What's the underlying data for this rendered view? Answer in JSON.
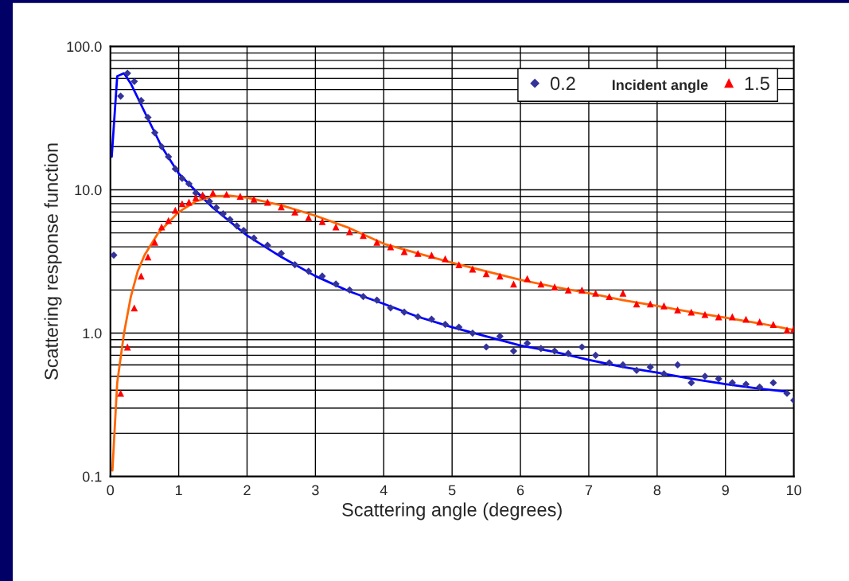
{
  "chart_data": {
    "type": "scatter",
    "xlabel": "Scattering angle (degrees)",
    "ylabel": "Scattering response function",
    "legend_title": "Incident angle",
    "legend": "top right",
    "grid": true,
    "log": "y",
    "xlim": [
      0,
      10
    ],
    "xticks": [
      0,
      1,
      2,
      3,
      4,
      5,
      6,
      7,
      8,
      9,
      10
    ],
    "ylim": [
      0.1,
      100
    ],
    "yticks": [
      {
        "value": 0.1,
        "label": "0.1"
      },
      {
        "value": 1,
        "label": "1.0"
      },
      {
        "value": 10,
        "label": "10.0"
      },
      {
        "value": 100,
        "label": "100.0"
      }
    ],
    "series": [
      {
        "name": "0.2",
        "marker": "diamond",
        "color": "#333399",
        "x": [
          0.05,
          0.15,
          0.25,
          0.35,
          0.45,
          0.55,
          0.65,
          0.75,
          0.85,
          0.95,
          1.05,
          1.15,
          1.25,
          1.35,
          1.45,
          1.55,
          1.65,
          1.75,
          1.85,
          1.95,
          2.1,
          2.3,
          2.5,
          2.7,
          2.9,
          3.1,
          3.3,
          3.5,
          3.7,
          3.9,
          4.1,
          4.3,
          4.5,
          4.7,
          4.9,
          5.1,
          5.3,
          5.5,
          5.7,
          5.9,
          6.1,
          6.3,
          6.5,
          6.7,
          6.9,
          7.1,
          7.3,
          7.5,
          7.7,
          7.9,
          8.1,
          8.3,
          8.5,
          8.7,
          8.9,
          9.1,
          9.3,
          9.5,
          9.7,
          9.9,
          10.0
        ],
        "values": [
          3.5,
          45,
          65,
          57,
          42,
          32,
          25,
          20,
          17,
          14,
          12,
          11,
          9.5,
          9,
          8.3,
          7.5,
          6.8,
          6.2,
          5.6,
          5.2,
          4.6,
          4.1,
          3.6,
          3.0,
          2.7,
          2.5,
          2.2,
          2.0,
          1.8,
          1.7,
          1.5,
          1.4,
          1.3,
          1.25,
          1.15,
          1.1,
          1.0,
          0.8,
          0.95,
          0.75,
          0.85,
          0.78,
          0.75,
          0.72,
          0.8,
          0.7,
          0.62,
          0.6,
          0.55,
          0.58,
          0.52,
          0.6,
          0.45,
          0.5,
          0.48,
          0.45,
          0.44,
          0.42,
          0.45,
          0.38,
          0.34
        ]
      },
      {
        "name": "1.5",
        "marker": "triangle",
        "color": "#ff0000",
        "x": [
          0.15,
          0.25,
          0.35,
          0.45,
          0.55,
          0.65,
          0.75,
          0.85,
          0.95,
          1.05,
          1.15,
          1.25,
          1.35,
          1.5,
          1.7,
          1.9,
          2.1,
          2.3,
          2.5,
          2.7,
          2.9,
          3.1,
          3.3,
          3.5,
          3.7,
          3.9,
          4.1,
          4.3,
          4.5,
          4.7,
          4.9,
          5.1,
          5.3,
          5.5,
          5.7,
          5.9,
          6.1,
          6.3,
          6.5,
          6.7,
          6.9,
          7.1,
          7.3,
          7.5,
          7.7,
          7.9,
          8.1,
          8.3,
          8.5,
          8.7,
          8.9,
          9.1,
          9.3,
          9.5,
          9.7,
          9.9,
          10.0
        ],
        "values": [
          0.38,
          0.8,
          1.5,
          2.5,
          3.4,
          4.3,
          5.5,
          6.1,
          7.2,
          8.0,
          8.2,
          8.8,
          9.2,
          9.5,
          9.3,
          9.0,
          8.6,
          8.2,
          7.6,
          7.0,
          6.4,
          6.0,
          5.5,
          5.1,
          4.8,
          4.3,
          4.0,
          3.7,
          3.6,
          3.5,
          3.3,
          3.0,
          2.8,
          2.6,
          2.5,
          2.2,
          2.4,
          2.2,
          2.1,
          2.0,
          2.0,
          1.9,
          1.8,
          1.9,
          1.6,
          1.6,
          1.55,
          1.45,
          1.4,
          1.35,
          1.3,
          1.3,
          1.25,
          1.2,
          1.15,
          1.05,
          1.07
        ]
      },
      {
        "type": "line",
        "color": "#0000ff",
        "x": [
          0.02,
          0.1,
          0.2,
          0.3,
          0.5,
          0.75,
          1.0,
          1.25,
          1.5,
          2.0,
          2.5,
          3.0,
          3.5,
          4.0,
          4.5,
          5.0,
          5.5,
          6.0,
          6.5,
          7.0,
          7.5,
          8.0,
          8.5,
          9.0,
          9.5,
          9.9
        ],
        "values": [
          17,
          62,
          65,
          55,
          35,
          20,
          13,
          9.8,
          7.5,
          4.8,
          3.4,
          2.5,
          1.95,
          1.6,
          1.3,
          1.1,
          0.95,
          0.82,
          0.74,
          0.65,
          0.58,
          0.53,
          0.48,
          0.44,
          0.41,
          0.39
        ]
      },
      {
        "type": "line",
        "color": "#ff6600",
        "x": [
          0.03,
          0.1,
          0.2,
          0.3,
          0.4,
          0.5,
          0.7,
          1.0,
          1.25,
          1.5,
          1.75,
          2.0,
          2.5,
          3.0,
          3.5,
          4.0,
          4.5,
          5.0,
          5.5,
          6.0,
          6.5,
          7.0,
          7.5,
          8.0,
          8.5,
          9.0,
          9.5,
          10.0
        ],
        "values": [
          0.11,
          0.45,
          1.0,
          1.8,
          2.7,
          3.5,
          5.0,
          7.0,
          8.3,
          9.0,
          9.1,
          8.8,
          7.8,
          6.6,
          5.4,
          4.2,
          3.6,
          3.1,
          2.7,
          2.35,
          2.1,
          1.9,
          1.7,
          1.55,
          1.4,
          1.28,
          1.17,
          1.05
        ]
      }
    ]
  }
}
